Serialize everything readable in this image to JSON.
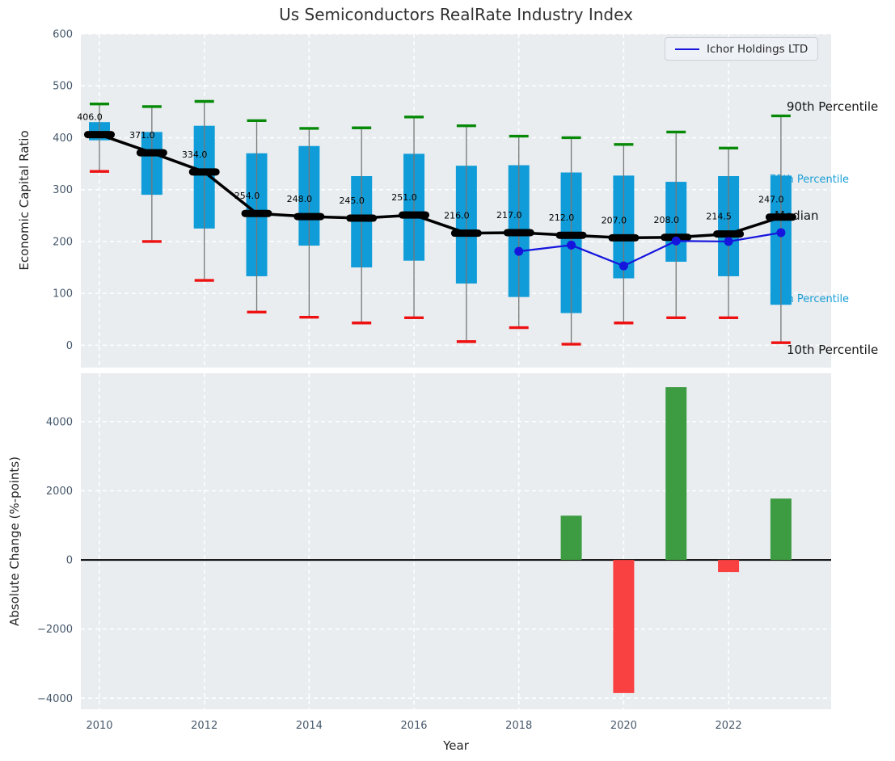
{
  "title": "Us Semiconductors RealRate Industry Index",
  "legend": {
    "label": "Ichor Holdings LTD",
    "line_color": "#1515dd"
  },
  "axes": {
    "top": {
      "ylabel": "Economic Capital Ratio"
    },
    "bottom": {
      "ylabel": "Absolute Change (%-points)",
      "xlabel": "Year"
    }
  },
  "annotations": {
    "p90": "90th Percentile",
    "p75": "75th Percentile",
    "median": "Median",
    "p25": "25th Percentile",
    "p10": "10th Percentile"
  },
  "colors": {
    "axes_bg": "#e9edf0",
    "grid": "#ffffff",
    "box_fill": "#109cd8",
    "whisker_line": "#777777",
    "cap_high": "#078a08",
    "cap_low": "#ee1111",
    "median_line": "#000000",
    "ichor_line": "#1515dd",
    "bar_positive": "#3d9b42",
    "bar_negative": "#fa4141",
    "tick_label": "#46586b",
    "annotation_cyan": "#1a9ed6",
    "zero_line": "#000000"
  },
  "chart_data": [
    {
      "type": "box",
      "title": "Us Semiconductors RealRate Industry Index",
      "ylabel": "Economic Capital Ratio",
      "ylim": [
        -43,
        600
      ],
      "yticks": [
        0,
        100,
        200,
        300,
        400,
        500,
        600
      ],
      "grid": true,
      "legend_position": "upper right",
      "categories": [
        2010,
        2011,
        2012,
        2013,
        2014,
        2015,
        2016,
        2017,
        2018,
        2019,
        2020,
        2021,
        2022,
        2023
      ],
      "p90": [
        465,
        460,
        470,
        433,
        418,
        419,
        440,
        423,
        403,
        400,
        387,
        411,
        380,
        442
      ],
      "q3": [
        430,
        411,
        423,
        370,
        384,
        326,
        369,
        346,
        347,
        333,
        327,
        315,
        326,
        327
      ],
      "median": [
        406.0,
        371.0,
        334.0,
        254.0,
        248.0,
        245.0,
        251.0,
        216.0,
        217.0,
        212.0,
        207.0,
        208.0,
        214.5,
        247.0
      ],
      "q1": [
        395,
        290,
        225,
        133,
        192,
        150,
        163,
        119,
        93,
        62,
        129,
        161,
        133,
        78
      ],
      "p10": [
        335,
        200,
        125,
        64,
        54,
        43,
        53,
        7,
        34,
        2,
        43,
        53,
        53,
        5
      ],
      "median_labels": [
        "406.0",
        "371.0",
        "334.0",
        "254.0",
        "248.0",
        "245.0",
        "251.0",
        "216.0",
        "217.0",
        "212.0",
        "207.0",
        "208.0",
        "214.5",
        "247.0"
      ],
      "series": [
        {
          "name": "Ichor Holdings LTD",
          "x": [
            2018,
            2019,
            2020,
            2021,
            2022,
            2023
          ],
          "y": [
            181,
            193,
            153,
            201,
            200,
            217
          ]
        }
      ]
    },
    {
      "type": "bar",
      "ylabel": "Absolute Change (%-points)",
      "xlabel": "Year",
      "ylim": [
        -4320,
        5400
      ],
      "yticks": [
        -4000,
        -2000,
        0,
        2000,
        4000
      ],
      "xticks": [
        2010,
        2012,
        2014,
        2016,
        2018,
        2020,
        2022
      ],
      "grid": true,
      "x": [
        2019,
        2020,
        2021,
        2022,
        2023
      ],
      "values": [
        1280,
        -3850,
        5000,
        -350,
        1775
      ]
    }
  ]
}
